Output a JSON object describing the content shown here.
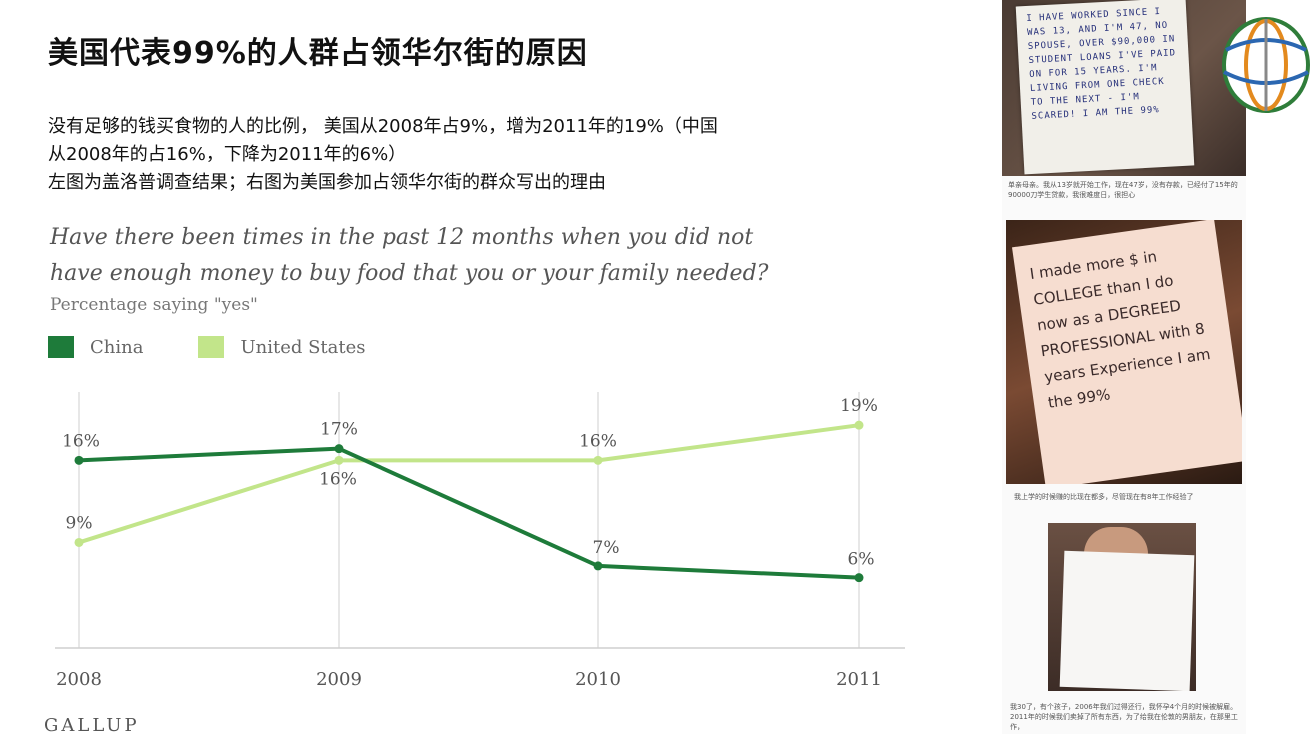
{
  "slide": {
    "title": "美国代表99%的人群占领华尔街的原因",
    "desc_line1": "没有足够的钱买食物的人的比例， 美国从2008年占9%，增为2011年的19%（中国",
    "desc_line2": "从2008年的占16%，下降为2011年的6%）",
    "desc_line3": "左图为盖洛普调查结果；右图为美国参加占领华尔街的群众写出的理由",
    "brand": "GALLUP"
  },
  "chart_data": {
    "type": "line",
    "title": "Have there been times in the past 12 months when you did not have enough money to buy food that you or your family needed?",
    "title_line1": "Have there been times in the past 12 months when you did not",
    "title_line2": "have enough money to buy food that you or your family needed?",
    "subtitle": "Percentage saying \"yes\"",
    "x": [
      "2008",
      "2009",
      "2010",
      "2011"
    ],
    "ylim": [
      0,
      22
    ],
    "grid": "vertical",
    "legend_position": "top-left",
    "series": [
      {
        "name": "China",
        "color": "#1e7b3a",
        "values": [
          16,
          17,
          7,
          6
        ],
        "labels": [
          "16%",
          "17%",
          "7%",
          "6%"
        ]
      },
      {
        "name": "United States",
        "color": "#c2e58a",
        "values": [
          9,
          16,
          16,
          19
        ],
        "labels": [
          "9%",
          "16%",
          "16%",
          "19%"
        ]
      }
    ]
  },
  "photos": {
    "sign1_text": "I HAVE WORKED SINCE I WAS 13, AND I'M 47, NO SPOUSE, OVER $90,000 IN STUDENT LOANS I'VE PAID ON FOR 15 YEARS. I'M LIVING FROM ONE CHECK TO THE NEXT - I'M SCARED! I AM THE 99%",
    "caption1": "单亲母亲。我从13岁就开始工作，现在47岁，没有存款，已经付了15年的90000刀学生贷款，我很难度日，很担心",
    "sign2_text": "I made more $ in COLLEGE than I do now as a DEGREED PROFESSIONAL with 8 years Experience I am the 99%",
    "caption2": "我上学的时候赚的比现在都多，尽管现在有8年工作经验了",
    "caption3": "我30了，有个孩子，2006年我们过得还行，我怀孕4个月的时候被解雇。2011年的时候我们卖掉了所有东西，为了给我在伦敦的男朋友，在那里工作，"
  },
  "colors": {
    "china": "#1e7b3a",
    "us": "#c2e58a",
    "grid": "#cfcfcf"
  },
  "icons": {
    "logo": "globe-logo-icon"
  }
}
